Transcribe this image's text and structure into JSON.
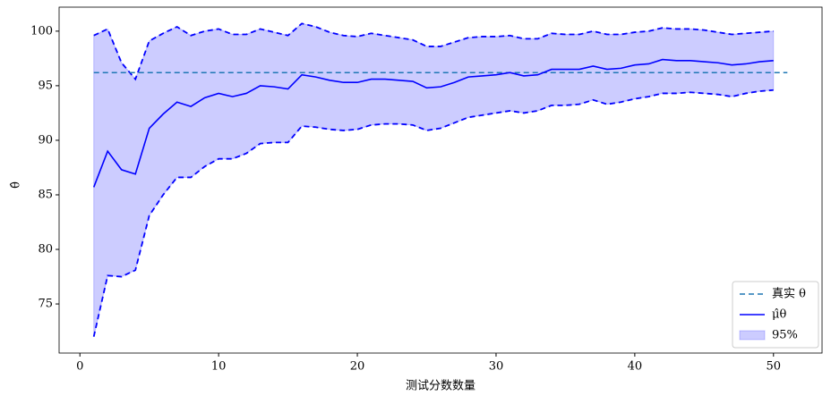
{
  "chart_data": {
    "type": "line",
    "xlabel": "测试分数数量",
    "ylabel": "θ̂",
    "x": [
      1,
      2,
      3,
      4,
      5,
      6,
      7,
      8,
      9,
      10,
      11,
      12,
      13,
      14,
      15,
      16,
      17,
      18,
      19,
      20,
      21,
      22,
      23,
      24,
      25,
      26,
      27,
      28,
      29,
      30,
      31,
      32,
      33,
      34,
      35,
      36,
      37,
      38,
      39,
      40,
      41,
      42,
      43,
      44,
      45,
      46,
      47,
      48,
      49,
      50
    ],
    "series": [
      {
        "name": "真实 θ",
        "color": "#1f77b4",
        "style": "dashed",
        "x": [
          1,
          51
        ],
        "values": [
          96.2,
          96.2
        ]
      },
      {
        "name": "μ̂θ",
        "color": "#0000ff",
        "style": "solid",
        "values": [
          85.7,
          89.0,
          87.3,
          86.9,
          91.1,
          92.4,
          93.5,
          93.1,
          93.9,
          94.3,
          94.0,
          94.3,
          95.0,
          94.9,
          94.7,
          96.0,
          95.8,
          95.5,
          95.3,
          95.3,
          95.6,
          95.6,
          95.5,
          95.4,
          94.8,
          94.9,
          95.3,
          95.8,
          95.9,
          96.0,
          96.2,
          95.9,
          96.0,
          96.5,
          96.5,
          96.5,
          96.8,
          96.5,
          96.6,
          96.9,
          97.0,
          97.4,
          97.3,
          97.3,
          97.2,
          97.1,
          96.9,
          97.0,
          97.2,
          97.3
        ]
      },
      {
        "name": "95%",
        "color": "#0000ff",
        "style": "band",
        "upper": [
          99.6,
          100.2,
          97.1,
          95.6,
          99.1,
          99.8,
          100.4,
          99.6,
          100.0,
          100.2,
          99.7,
          99.7,
          100.2,
          99.9,
          99.6,
          100.7,
          100.4,
          99.9,
          99.6,
          99.5,
          99.8,
          99.6,
          99.4,
          99.2,
          98.6,
          98.6,
          99.0,
          99.4,
          99.5,
          99.5,
          99.6,
          99.3,
          99.3,
          99.8,
          99.7,
          99.7,
          100.0,
          99.7,
          99.7,
          99.9,
          100.0,
          100.3,
          100.2,
          100.2,
          100.1,
          99.9,
          99.7,
          99.8,
          99.9,
          100.0
        ],
        "lower": [
          72.0,
          77.6,
          77.5,
          78.1,
          83.1,
          85.0,
          86.6,
          86.6,
          87.6,
          88.3,
          88.3,
          88.8,
          89.7,
          89.8,
          89.8,
          91.3,
          91.2,
          91.0,
          90.9,
          91.0,
          91.4,
          91.5,
          91.5,
          91.4,
          90.9,
          91.1,
          91.6,
          92.1,
          92.3,
          92.5,
          92.7,
          92.5,
          92.7,
          93.2,
          93.2,
          93.3,
          93.7,
          93.3,
          93.5,
          93.8,
          94.0,
          94.3,
          94.3,
          94.4,
          94.3,
          94.2,
          94.0,
          94.3,
          94.5,
          94.6
        ]
      }
    ],
    "xlim": [
      -1.5,
      53.5
    ],
    "ylim": [
      70.5,
      102.2
    ],
    "xticks": [
      0,
      10,
      20,
      30,
      40,
      50
    ],
    "yticks": [
      75,
      80,
      85,
      90,
      95,
      100
    ],
    "grid": false,
    "legend": "lower right"
  }
}
